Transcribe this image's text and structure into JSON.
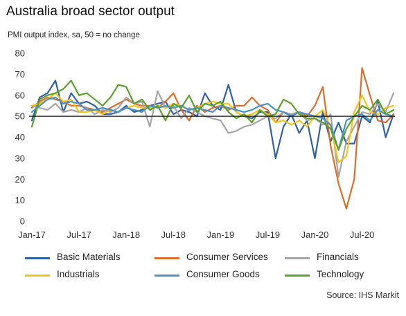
{
  "title": "Australia broad sector output",
  "subtitle": "PMI output index, sa, 50 = no change",
  "source": "Source: IHS Markit",
  "chart_data": {
    "type": "line",
    "title": "Australia broad sector output",
    "ylabel": "PMI output index, sa, 50 = no change",
    "ylim": [
      0,
      80
    ],
    "yticks": [
      0,
      10,
      20,
      30,
      40,
      50,
      60,
      70,
      80
    ],
    "xticks": [
      "Jan-17",
      "Jul-17",
      "Jan-18",
      "Jul-18",
      "Jan-19",
      "Jul-19",
      "Jan-20",
      "Jul-20"
    ],
    "x": [
      "Jan-17",
      "Feb-17",
      "Mar-17",
      "Apr-17",
      "May-17",
      "Jun-17",
      "Jul-17",
      "Aug-17",
      "Sep-17",
      "Oct-17",
      "Nov-17",
      "Dec-17",
      "Jan-18",
      "Feb-18",
      "Mar-18",
      "Apr-18",
      "May-18",
      "Jun-18",
      "Jul-18",
      "Aug-18",
      "Sep-18",
      "Oct-18",
      "Nov-18",
      "Dec-18",
      "Jan-19",
      "Feb-19",
      "Mar-19",
      "Apr-19",
      "May-19",
      "Jun-19",
      "Jul-19",
      "Aug-19",
      "Sep-19",
      "Oct-19",
      "Nov-19",
      "Dec-19",
      "Jan-20",
      "Feb-20",
      "Mar-20",
      "Apr-20",
      "May-20",
      "Jun-20",
      "Jul-20",
      "Aug-20",
      "Sep-20",
      "Oct-20",
      "Nov-20"
    ],
    "reference_line": 50,
    "grid": false,
    "legend_position": "bottom",
    "series": [
      {
        "name": "Basic Materials",
        "color": "#2f5fa7",
        "values": [
          48,
          59,
          61,
          67,
          52,
          61,
          56,
          57,
          55,
          51,
          51,
          52,
          55,
          52,
          53,
          55,
          56,
          57,
          51,
          53,
          52,
          50,
          61,
          55,
          53,
          65,
          52,
          50,
          49,
          52,
          52,
          30,
          45,
          51,
          42,
          48,
          30,
          52,
          38,
          47,
          37,
          37,
          50,
          47,
          57,
          40,
          51
        ]
      },
      {
        "name": "Consumer Services",
        "color": "#e06c2b",
        "values": [
          54,
          57,
          59,
          58,
          57,
          55,
          55,
          54,
          53,
          52,
          54,
          56,
          58,
          56,
          55,
          55,
          54,
          57,
          61,
          53,
          48,
          55,
          52,
          54,
          55,
          53,
          55,
          55,
          59,
          55,
          53,
          47,
          52,
          50,
          52,
          50,
          55,
          64,
          36,
          18,
          6,
          20,
          73,
          60,
          48,
          47,
          51
        ]
      },
      {
        "name": "Financials",
        "color": "#a5a5a5",
        "values": [
          55,
          54,
          53,
          56,
          52,
          53,
          52,
          54,
          51,
          53,
          52,
          54,
          59,
          56,
          57,
          45,
          62,
          54,
          55,
          49,
          54,
          52,
          50,
          49,
          48,
          42,
          43,
          45,
          46,
          48,
          50,
          49,
          52,
          51,
          52,
          48,
          49,
          46,
          51,
          21,
          38,
          45,
          52,
          51,
          56,
          52,
          61
        ]
      },
      {
        "name": "Industrials",
        "color": "#f5c218",
        "values": [
          55,
          56,
          58,
          61,
          57,
          58,
          52,
          52,
          53,
          51,
          53,
          52,
          54,
          55,
          54,
          54,
          55,
          54,
          56,
          55,
          53,
          54,
          56,
          57,
          56,
          56,
          52,
          50,
          51,
          53,
          51,
          47,
          48,
          46,
          48,
          45,
          50,
          53,
          45,
          28,
          31,
          52,
          60,
          52,
          51,
          54,
          55
        ]
      },
      {
        "name": "Consumer Goods",
        "color": "#4a93c8",
        "values": [
          52,
          55,
          58,
          59,
          56,
          57,
          56,
          53,
          53,
          54,
          53,
          52,
          54,
          53,
          52,
          55,
          54,
          55,
          54,
          55,
          53,
          54,
          53,
          52,
          55,
          54,
          53,
          52,
          53,
          55,
          56,
          53,
          52,
          50,
          52,
          51,
          50,
          49,
          46,
          34,
          48,
          50,
          51,
          48,
          53,
          51,
          50
        ]
      },
      {
        "name": "Technology",
        "color": "#5aa02c",
        "values": [
          45,
          58,
          60,
          61,
          63,
          67,
          60,
          61,
          58,
          55,
          59,
          65,
          64,
          56,
          58,
          53,
          55,
          48,
          56,
          54,
          60,
          52,
          56,
          55,
          57,
          52,
          49,
          51,
          47,
          53,
          50,
          51,
          58,
          56,
          51,
          49,
          49,
          47,
          44,
          34,
          44,
          50,
          55,
          53,
          58,
          51,
          53
        ]
      }
    ]
  }
}
